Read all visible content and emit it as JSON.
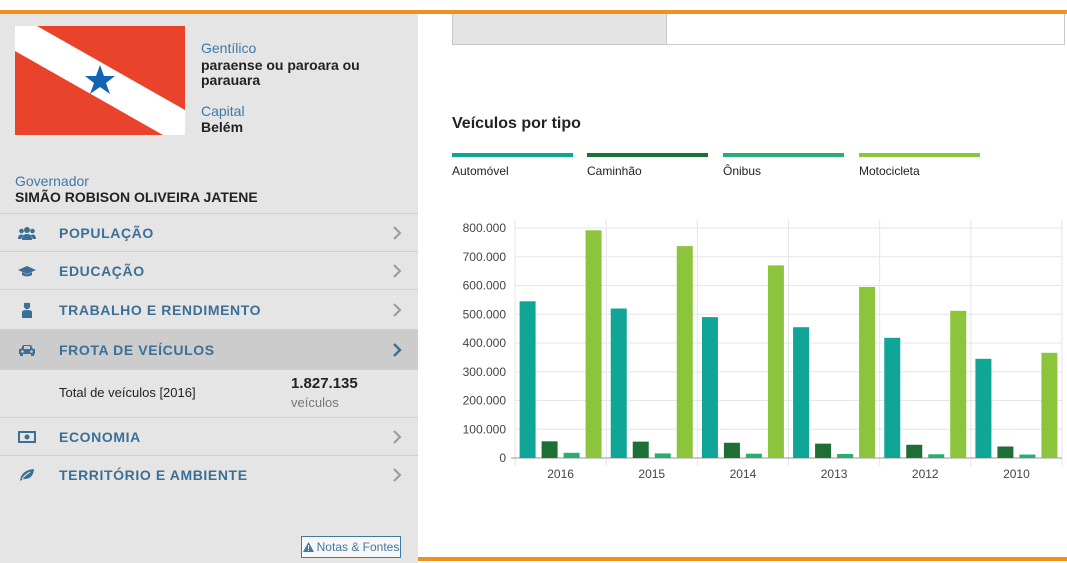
{
  "header": {
    "gentilico_label": "Gentílico",
    "gentilico_value": "paraense ou paroara ou parauara",
    "capital_label": "Capital",
    "capital_value": "Belém",
    "governador_label": "Governador",
    "governador_value": "SIMÃO ROBISON OLIVEIRA JATENE"
  },
  "flag": {
    "colors": {
      "red": "#e9442b",
      "white": "#ffffff",
      "blue": "#1464b4"
    }
  },
  "menu": [
    {
      "label": "POPULAÇÃO",
      "icon": "people-icon",
      "active": false
    },
    {
      "label": "EDUCAÇÃO",
      "icon": "graduation-cap-icon",
      "active": false
    },
    {
      "label": "TRABALHO E RENDIMENTO",
      "icon": "worker-icon",
      "active": false
    },
    {
      "label": "FROTA DE VEÍCULOS",
      "icon": "car-icon",
      "active": true
    },
    {
      "label": "ECONOMIA",
      "icon": "money-icon",
      "active": false
    },
    {
      "label": "TERRITÓRIO E AMBIENTE",
      "icon": "leaf-icon",
      "active": false
    }
  ],
  "frota_sub": {
    "label": "Total de veículos [2016]",
    "value": "1.827.135",
    "unit": "veículos"
  },
  "notes_button": {
    "label": "Notas & Fontes",
    "icon": "warning-icon"
  },
  "colors": {
    "accent_orange": "#ef9021",
    "menu_blue": "#3b6f96"
  },
  "chart_data": {
    "type": "bar",
    "title": "Veículos por tipo",
    "categories": [
      "2016",
      "2015",
      "2014",
      "2013",
      "2012",
      "2010"
    ],
    "series": [
      {
        "name": "Automóvel",
        "color": "#0fa597",
        "values": [
          545000,
          520000,
          490000,
          455000,
          418000,
          345000
        ]
      },
      {
        "name": "Caminhão",
        "color": "#1e6f36",
        "values": [
          58000,
          57000,
          53000,
          50000,
          46000,
          40000
        ]
      },
      {
        "name": "Ônibus",
        "color": "#27ae72",
        "values": [
          18000,
          16000,
          15000,
          14000,
          13000,
          12000
        ]
      },
      {
        "name": "Motocicleta",
        "color": "#8cc43c",
        "values": [
          792000,
          737000,
          670000,
          595000,
          512000,
          366000
        ]
      }
    ],
    "ylim": [
      0,
      800000
    ],
    "yticks": [
      "0",
      "100.000",
      "200.000",
      "300.000",
      "400.000",
      "500.000",
      "600.000",
      "700.000",
      "800.000"
    ],
    "grid": true
  }
}
